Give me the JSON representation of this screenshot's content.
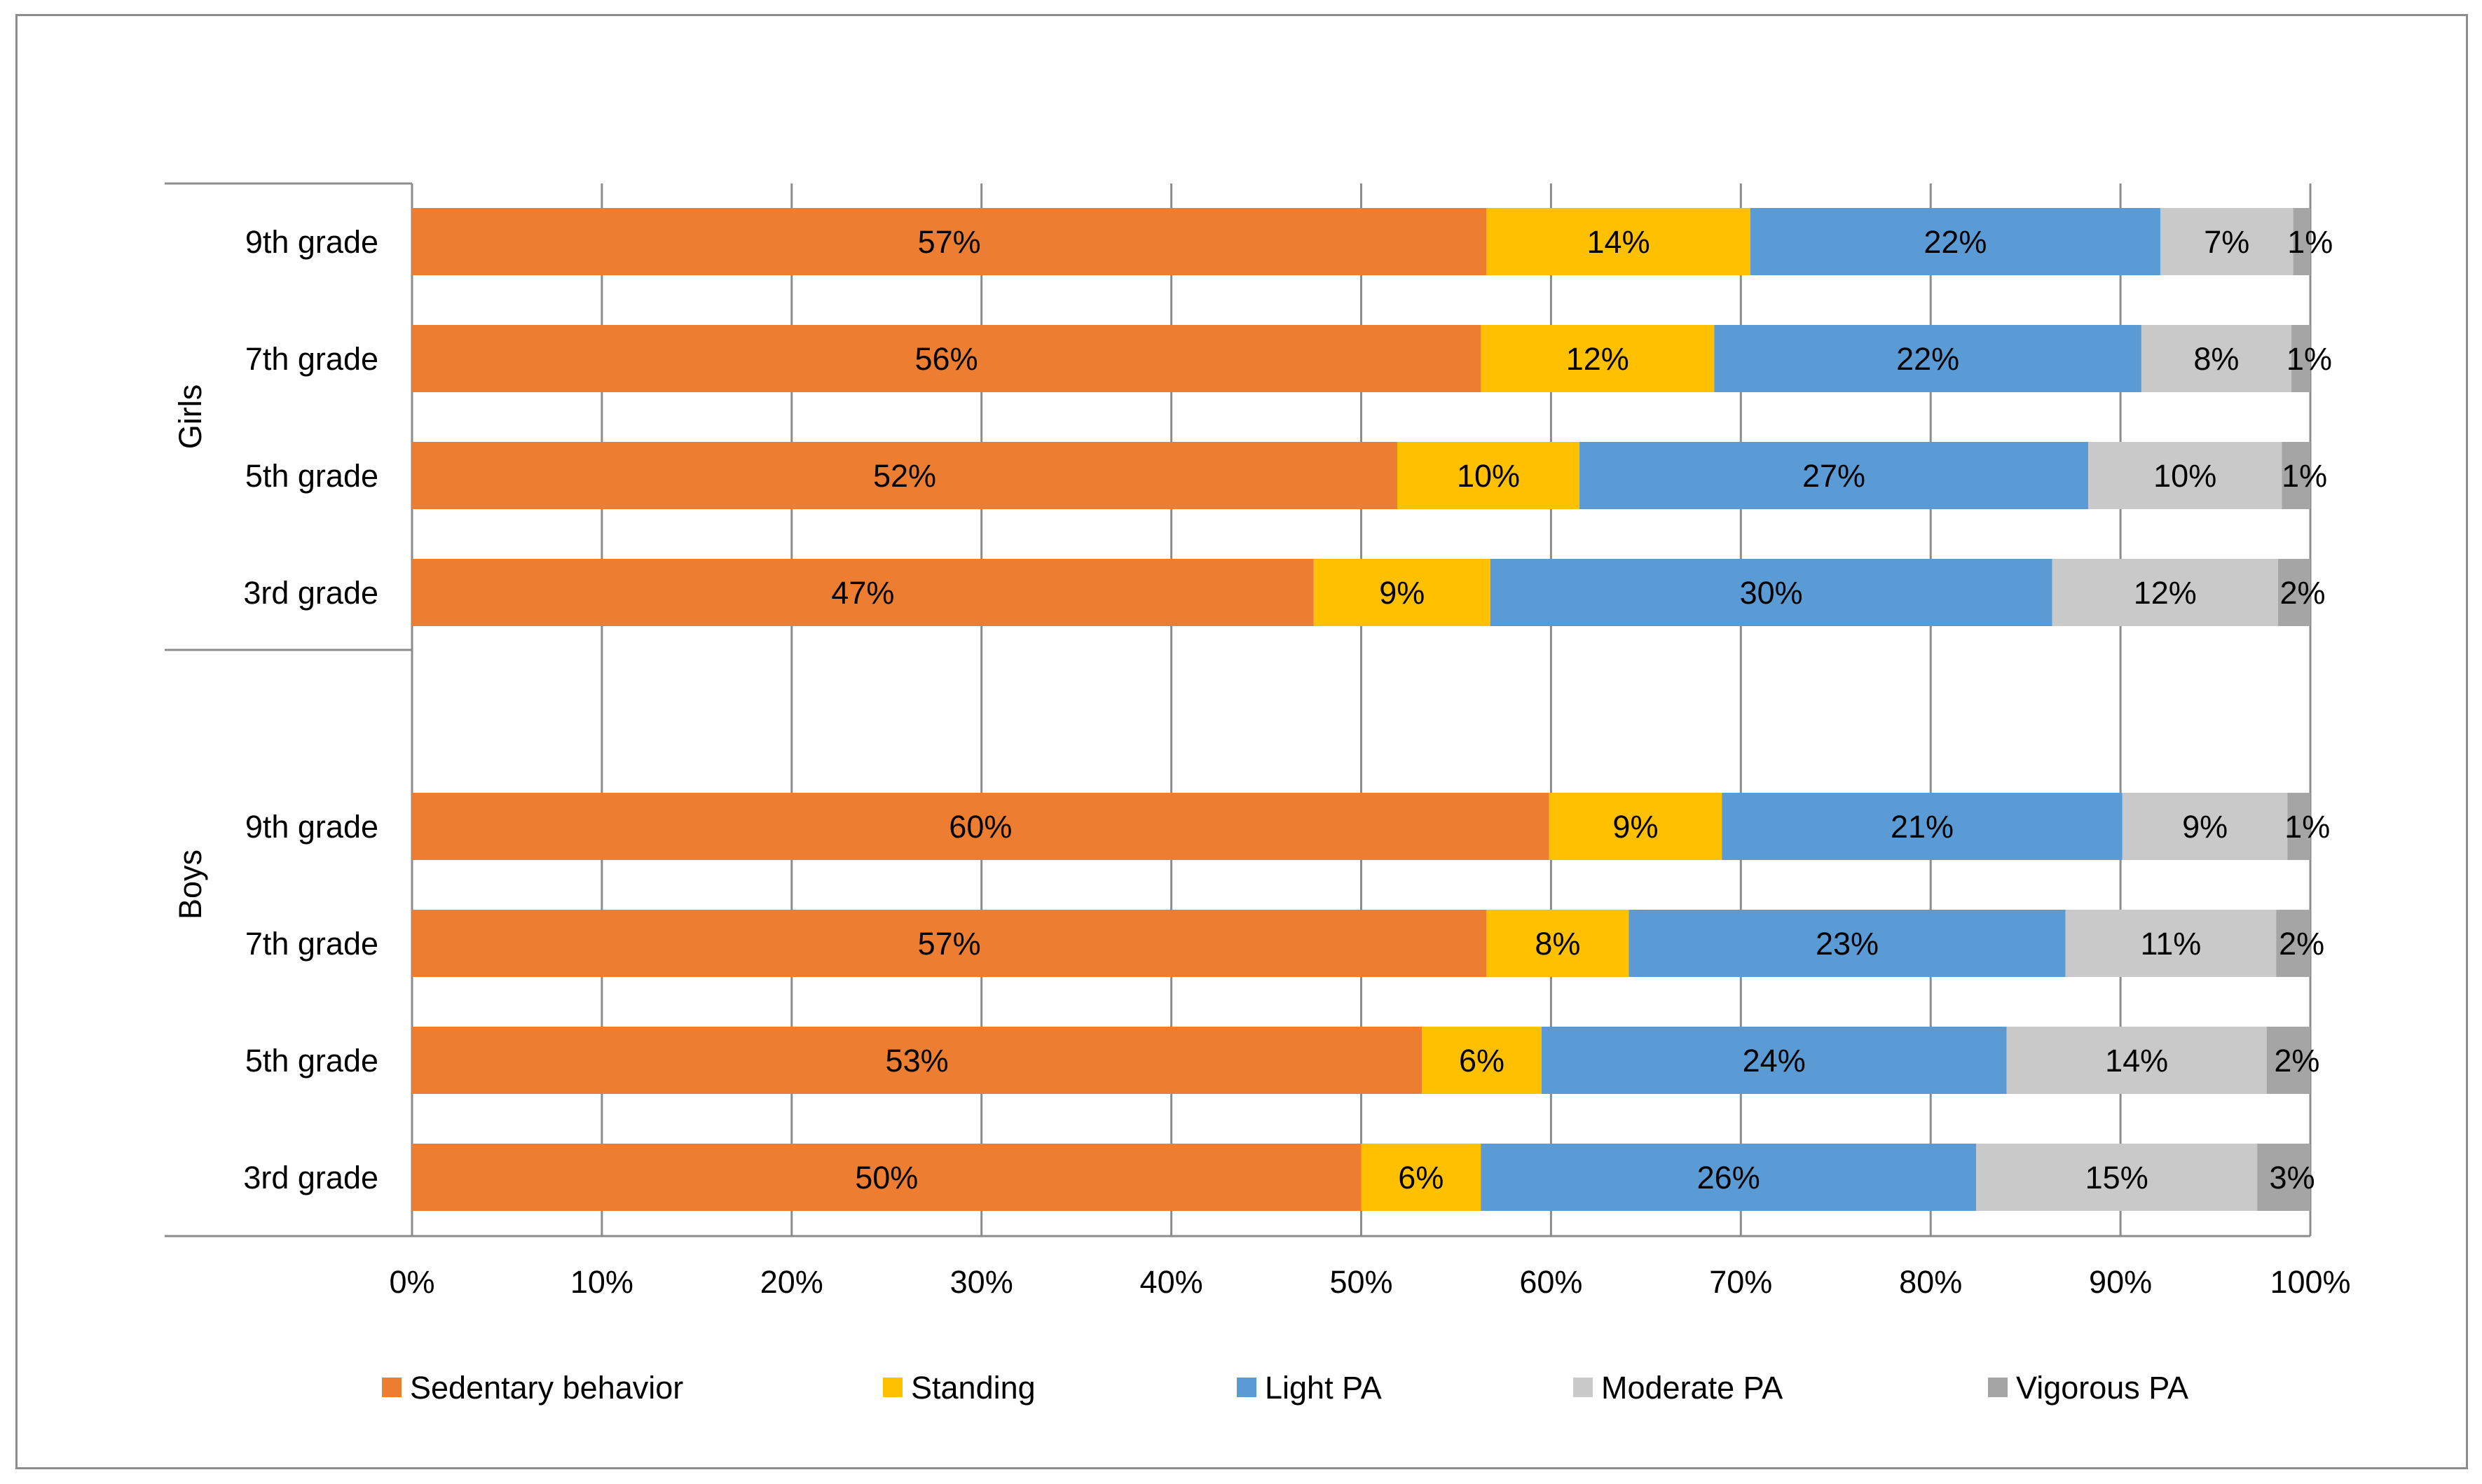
{
  "chart_data": {
    "type": "bar",
    "orientation": "horizontal",
    "stacked": "percent",
    "title": "",
    "xlabel": "",
    "ylabel": "",
    "xlim": [
      0,
      100
    ],
    "x_ticks": [
      "0%",
      "10%",
      "20%",
      "30%",
      "40%",
      "50%",
      "60%",
      "70%",
      "80%",
      "90%",
      "100%"
    ],
    "grid": true,
    "legend_position": "bottom",
    "groups": [
      {
        "name": "Girls",
        "categories": [
          "9th grade",
          "7th grade",
          "5th grade",
          "3rd grade"
        ],
        "rows": [
          {
            "values": [
              56.6,
              13.9,
              21.6,
              7.0,
              0.9
            ],
            "labels": [
              "57%",
              "14%",
              "22%",
              "7%",
              "1%"
            ]
          },
          {
            "values": [
              56.3,
              12.3,
              22.5,
              7.9,
              1.0
            ],
            "labels": [
              "56%",
              "12%",
              "22%",
              "8%",
              "1%"
            ]
          },
          {
            "values": [
              51.9,
              9.6,
              26.8,
              10.2,
              1.5
            ],
            "labels": [
              "52%",
              "10%",
              "27%",
              "10%",
              "1%"
            ]
          },
          {
            "values": [
              47.5,
              9.3,
              29.6,
              11.9,
              1.7
            ],
            "labels": [
              "47%",
              "9%",
              "30%",
              "12%",
              "2%"
            ]
          }
        ]
      },
      {
        "name": "Boys",
        "categories": [
          "9th grade",
          "7th grade",
          "5th grade",
          "3rd grade"
        ],
        "rows": [
          {
            "values": [
              59.9,
              9.1,
              21.1,
              8.7,
              1.2
            ],
            "labels": [
              "60%",
              "9%",
              "21%",
              "9%",
              "1%"
            ]
          },
          {
            "values": [
              56.6,
              7.5,
              23.0,
              11.1,
              1.8
            ],
            "labels": [
              "57%",
              "8%",
              "23%",
              "11%",
              "2%"
            ]
          },
          {
            "values": [
              53.2,
              6.3,
              24.5,
              13.7,
              2.3
            ],
            "labels": [
              "53%",
              "6%",
              "24%",
              "14%",
              "2%"
            ]
          },
          {
            "values": [
              50.0,
              6.3,
              26.1,
              14.8,
              2.8
            ],
            "labels": [
              "50%",
              "6%",
              "26%",
              "15%",
              "3%"
            ]
          }
        ]
      }
    ],
    "series": [
      {
        "name": "Sedentary behavior",
        "color": "#ED7D31"
      },
      {
        "name": "Standing",
        "color": "#FFC000"
      },
      {
        "name": "Light PA",
        "color": "#5B9BD5"
      },
      {
        "name": "Moderate PA",
        "color": "#C9C9C9"
      },
      {
        "name": "Vigorous PA",
        "color": "#A5A5A5"
      }
    ]
  }
}
